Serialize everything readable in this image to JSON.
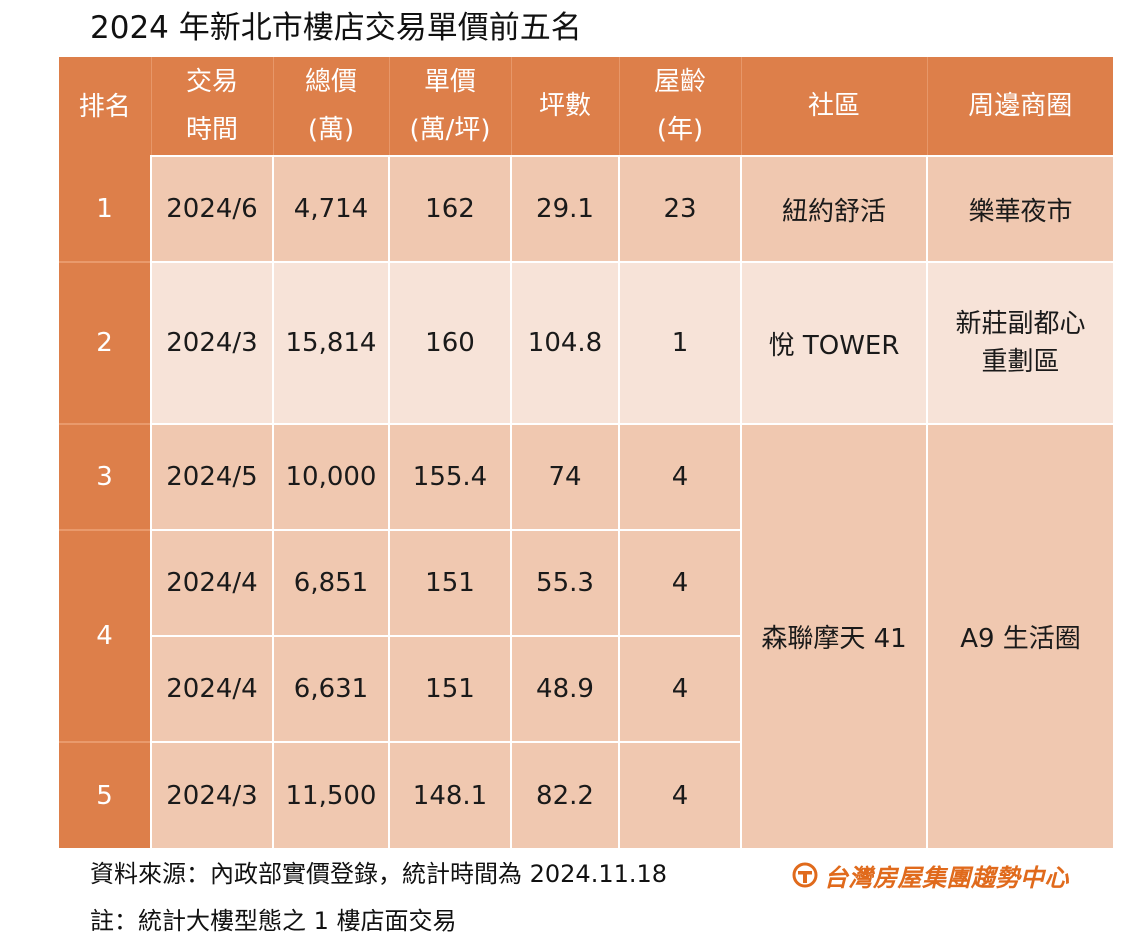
{
  "title": "2024 年新北市樓店交易單價前五名",
  "headers": {
    "rank": "排名",
    "date_l1": "交易",
    "date_l2": "時間",
    "total_l1": "總價",
    "total_l2": "(萬)",
    "unit_l1": "單價",
    "unit_l2": "(萬/坪)",
    "area": "坪數",
    "age_l1": "屋齡",
    "age_l2": "(年)",
    "community": "社區",
    "district": "周邊商圈"
  },
  "rows": [
    {
      "rank": "1",
      "date": "2024/6",
      "total": "4,714",
      "unit": "162",
      "area": "29.1",
      "age": "23",
      "community": "紐約舒活",
      "district": "樂華夜市"
    },
    {
      "rank": "2",
      "date": "2024/3",
      "total": "15,814",
      "unit": "160",
      "area": "104.8",
      "age": "1",
      "community": "悅 TOWER",
      "district_l1": "新莊副都心",
      "district_l2": "重劃區"
    },
    {
      "rank": "3",
      "date": "2024/5",
      "total": "10,000",
      "unit": "155.4",
      "area": "74",
      "age": "4"
    },
    {
      "rank": "4",
      "date": "2024/4",
      "total": "6,851",
      "unit": "151",
      "area": "55.3",
      "age": "4"
    },
    {
      "date": "2024/4",
      "total": "6,631",
      "unit": "151",
      "area": "48.9",
      "age": "4"
    },
    {
      "rank": "5",
      "date": "2024/3",
      "total": "11,500",
      "unit": "148.1",
      "area": "82.2",
      "age": "4"
    }
  ],
  "merged": {
    "community": "森聯摩天 41",
    "district": "A9 生活圈"
  },
  "footer": {
    "source": "資料來源：內政部實價登錄，統計時間為 2024.11.18",
    "note": "註：統計大樓型態之 1 樓店面交易",
    "logo_text": "台灣房屋集團趨勢中心",
    "logo_icon": "taiwan-realty-logo-icon"
  },
  "colors": {
    "header": "#dd7f4a",
    "cell_dark": "#f0c8b0",
    "cell_light": "#f7e3d8",
    "logo": "#e06a1c"
  }
}
